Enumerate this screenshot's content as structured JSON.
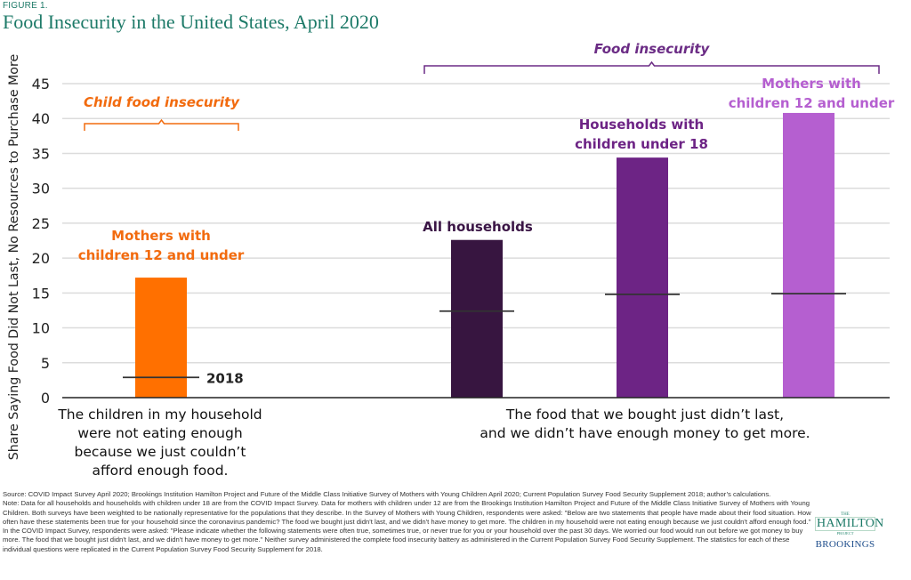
{
  "figure_label": "FIGURE 1.",
  "title": "Food Insecurity in the United States, April 2020",
  "chart_data": {
    "type": "bar",
    "title": "Food Insecurity in the United States, April 2020",
    "ylabel": "Share Saying Food Did Not Last, No Resources to Purchase More",
    "xlabel": "",
    "ylim": [
      0,
      45
    ],
    "yticks": [
      0,
      5,
      10,
      15,
      20,
      25,
      30,
      35,
      40,
      45
    ],
    "grid": true,
    "groups": [
      {
        "label": "The children in my household were not eating enough because we just couldn't afford enough food.",
        "label_lines": [
          "The children in my household",
          "were not eating enough",
          "because we just couldn’t",
          "afford enough food."
        ],
        "bracket_label": "Child food insecurity",
        "bracket_color": "#f26b0f"
      },
      {
        "label": "The food that we bought just didn't last, and we didn't have enough money to get more.",
        "label_lines": [
          "The food that we bought just didn’t last,",
          "and we didn’t have enough money to get more."
        ],
        "bracket_label": "Food insecurity",
        "bracket_color": "#6b2c85"
      }
    ],
    "bars": [
      {
        "group": 0,
        "name": "Mothers with children 12 and under",
        "label_lines": [
          "Mothers with",
          "children 12 and under"
        ],
        "value": 17.2,
        "value_2018": 2.9,
        "color": "#ff7000",
        "label_color": "#f26b0f"
      },
      {
        "group": 1,
        "name": "All households",
        "label_lines": [
          "All households"
        ],
        "value": 22.6,
        "value_2018": 12.4,
        "color": "#371540",
        "label_color": "#3a1545"
      },
      {
        "group": 1,
        "name": "Households with children under 18",
        "label_lines": [
          "Households with",
          "children under 18"
        ],
        "value": 34.4,
        "value_2018": 14.8,
        "color": "#6d2485",
        "label_color": "#6d2485"
      },
      {
        "group": 1,
        "name": "Mothers with children 12 and under",
        "label_lines": [
          "Mothers with",
          "children 12 and under"
        ],
        "value": 40.8,
        "value_2018": 14.9,
        "color": "#b55fd0",
        "label_color": "#b55fd0"
      }
    ],
    "marker_series_label": "2018",
    "annotations": [
      "2018"
    ]
  },
  "footer": {
    "source": "Source: COVID Impact Survey April 2020; Brookings Institution Hamilton Project and Future of the Middle Class Initiative Survey of Mothers with Young Children April 2020; Current Population Survey Food Security Supplement 2018; author’s calculations.",
    "note": "Note: Data for all households and households with children under 18 are from the COVID Impact Survey. Data for mothers with children under 12 are from the Brookings Institution Hamilton Project and Future of the Middle Class Initiative Survey of Mothers with Young Children. Both surveys have been weighted to be nationally representative for the populations that they describe. In the Survey of Mothers with Young Children, respondents were asked: \"Below are two statements that people have made about their food situation. How often have these statements been true for your household since the coronavirus pandemic? The food we bought just didn't last, and we didn't have money to get more. The children in my household were not eating enough because we just couldn't afford enough food.\" In the COVID Impact Survey, respondents were asked: \"Please indicate whether the following statements were often true, sometimes true, or never true for you or your household over the past 30 days. We worried our food would run out before we got money to buy more. The food that we bought just didn't last, and we didn't have money to get more.\" Neither survey administered the complete food insecurity battery as administered in the Current Population Survey Food Security Supplement. The statistics for each of these individual questions were replicated in the Current Population Survey Food Security Supplement for 2018."
  },
  "logo": {
    "the": "THE",
    "hamilton": "HAMILTON",
    "project": "PROJECT",
    "brookings": "BROOKINGS"
  }
}
